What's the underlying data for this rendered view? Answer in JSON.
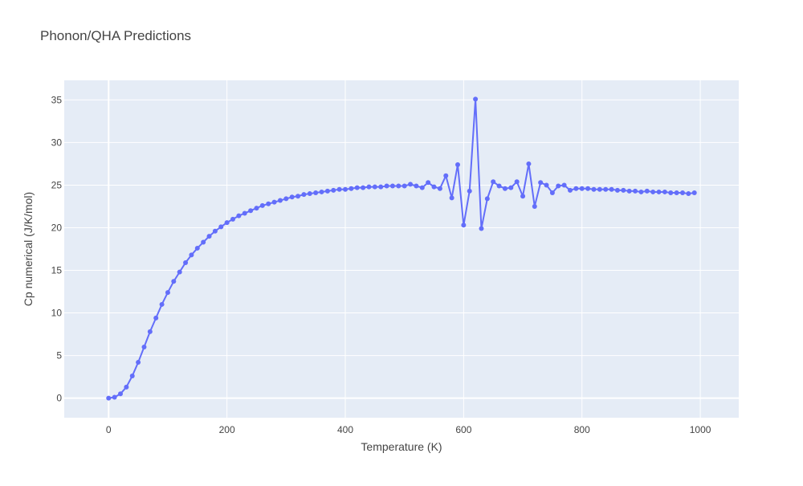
{
  "colors": {
    "plot_background": "#e5ecf6",
    "grid": "#ffffff",
    "series_line": "#636efa",
    "text": "#444444",
    "title": "#444444"
  },
  "chart_data": {
    "type": "line",
    "mode": "lines+markers",
    "title": "Phonon/QHA Predictions",
    "xlabel": "Temperature (K)",
    "ylabel": "Cp numerical (J/K/mol)",
    "xlim": [
      -75,
      1065
    ],
    "ylim": [
      -2.3,
      37.3
    ],
    "x_ticks": [
      0,
      200,
      400,
      600,
      800,
      1000
    ],
    "y_ticks": [
      0,
      5,
      10,
      15,
      20,
      25,
      30,
      35
    ],
    "grid": true,
    "legend": "none",
    "series": [
      {
        "x": [
          0,
          10,
          20,
          30,
          40,
          50,
          60,
          70,
          80,
          90,
          100,
          110,
          120,
          130,
          140,
          150,
          160,
          170,
          180,
          190,
          200,
          210,
          220,
          230,
          240,
          250,
          260,
          270,
          280,
          290,
          300,
          310,
          320,
          330,
          340,
          350,
          360,
          370,
          380,
          390,
          400,
          410,
          420,
          430,
          440,
          450,
          460,
          470,
          480,
          490,
          500,
          510,
          520,
          530,
          540,
          550,
          560,
          570,
          580,
          590,
          600,
          610,
          620,
          630,
          640,
          650,
          660,
          670,
          680,
          690,
          700,
          710,
          720,
          730,
          740,
          750,
          760,
          770,
          780,
          790,
          800,
          810,
          820,
          830,
          840,
          850,
          860,
          870,
          880,
          890,
          900,
          910,
          920,
          930,
          940,
          950,
          960,
          970,
          980,
          990
        ],
        "y": [
          0.0,
          0.1,
          0.5,
          1.3,
          2.6,
          4.2,
          6.0,
          7.8,
          9.4,
          11.0,
          12.4,
          13.7,
          14.8,
          15.9,
          16.8,
          17.6,
          18.3,
          19.0,
          19.6,
          20.1,
          20.6,
          21.0,
          21.4,
          21.7,
          22.0,
          22.3,
          22.6,
          22.8,
          23.0,
          23.2,
          23.4,
          23.6,
          23.7,
          23.9,
          24.0,
          24.1,
          24.2,
          24.3,
          24.4,
          24.5,
          24.5,
          24.6,
          24.7,
          24.7,
          24.8,
          24.8,
          24.8,
          24.9,
          24.9,
          24.9,
          24.9,
          25.1,
          24.9,
          24.7,
          25.3,
          24.8,
          24.6,
          26.1,
          23.5,
          27.4,
          20.3,
          24.3,
          35.1,
          19.9,
          23.4,
          25.4,
          24.9,
          24.6,
          24.7,
          25.4,
          23.7,
          27.5,
          22.5,
          25.3,
          25.0,
          24.1,
          24.9,
          25.0,
          24.4,
          24.6,
          24.6,
          24.6,
          24.5,
          24.5,
          24.5,
          24.5,
          24.4,
          24.4,
          24.3,
          24.3,
          24.2,
          24.3,
          24.2,
          24.2,
          24.2,
          24.1,
          24.1,
          24.1,
          24.0,
          24.1
        ]
      }
    ]
  }
}
